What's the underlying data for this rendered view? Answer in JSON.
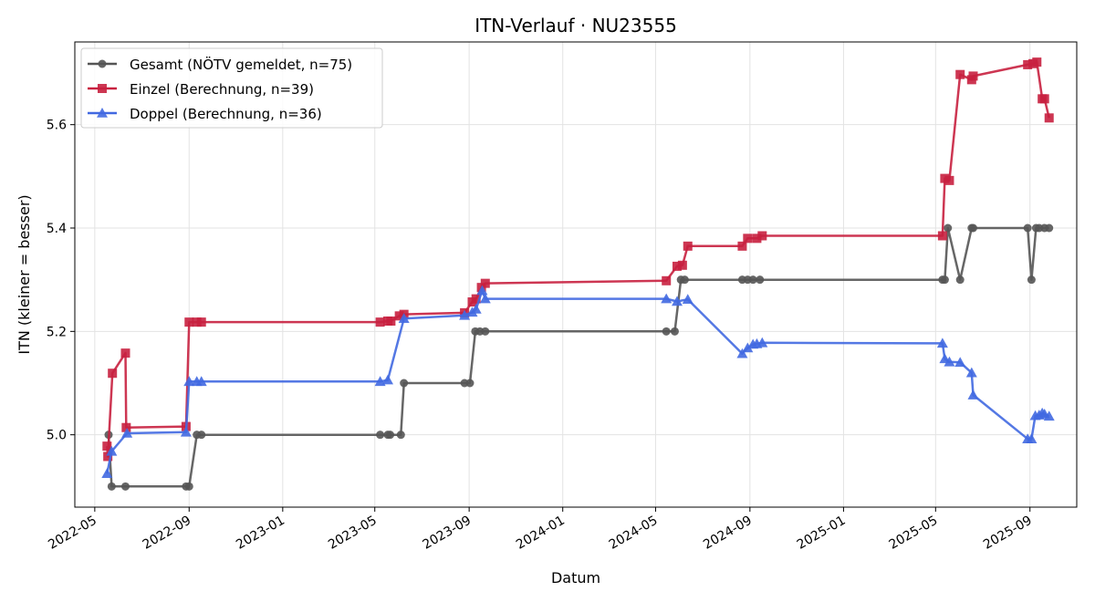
{
  "chart_data": {
    "type": "line",
    "title": "ITN-Verlauf · NU23555",
    "xlabel": "Datum",
    "ylabel": "ITN  (kleiner = besser)",
    "x_ticks": [
      "2022-05",
      "2022-09",
      "2023-01",
      "2023-05",
      "2023-09",
      "2024-01",
      "2024-05",
      "2024-09",
      "2025-01",
      "2025-05",
      "2025-09"
    ],
    "y_ticks": [
      "5.0",
      "5.2",
      "5.4",
      "5.6"
    ],
    "y_tick_values": [
      5.0,
      5.2,
      5.4,
      5.6
    ],
    "xlim": [
      "2022-04-05",
      "2025-11-01"
    ],
    "ylim": [
      4.86,
      5.76
    ],
    "grid": true,
    "legend_position": "upper left",
    "series": [
      {
        "name": "Gesamt (NÖTV gemeldet, n=75)",
        "color": "#555555",
        "marker": "circle",
        "points": [
          [
            "2022-05-19",
            5.0
          ],
          [
            "2022-05-23",
            4.9
          ],
          [
            "2022-06-10",
            4.9
          ],
          [
            "2022-08-28",
            4.9
          ],
          [
            "2022-09-01",
            4.9
          ],
          [
            "2022-09-11",
            5.0
          ],
          [
            "2022-09-17",
            5.0
          ],
          [
            "2023-05-08",
            5.0
          ],
          [
            "2023-05-18",
            5.0
          ],
          [
            "2023-05-21",
            5.0
          ],
          [
            "2023-06-04",
            5.0
          ],
          [
            "2023-06-08",
            5.1
          ],
          [
            "2023-08-26",
            5.1
          ],
          [
            "2023-09-02",
            5.1
          ],
          [
            "2023-09-09",
            5.2
          ],
          [
            "2023-09-15",
            5.2
          ],
          [
            "2023-09-22",
            5.2
          ],
          [
            "2024-05-15",
            5.2
          ],
          [
            "2024-05-26",
            5.2
          ],
          [
            "2024-06-03",
            5.3
          ],
          [
            "2024-06-08",
            5.3
          ],
          [
            "2024-08-22",
            5.3
          ],
          [
            "2024-08-29",
            5.3
          ],
          [
            "2024-09-05",
            5.3
          ],
          [
            "2024-09-14",
            5.3
          ],
          [
            "2025-05-10",
            5.3
          ],
          [
            "2025-05-13",
            5.3
          ],
          [
            "2025-05-17",
            5.4
          ],
          [
            "2025-06-02",
            5.3
          ],
          [
            "2025-06-17",
            5.4
          ],
          [
            "2025-06-19",
            5.4
          ],
          [
            "2025-08-29",
            5.4
          ],
          [
            "2025-09-03",
            5.3
          ],
          [
            "2025-09-09",
            5.4
          ],
          [
            "2025-09-13",
            5.4
          ],
          [
            "2025-09-20",
            5.4
          ],
          [
            "2025-09-26",
            5.4
          ]
        ]
      },
      {
        "name": "Einzel (Berechnung, n=39)",
        "color": "#c8203f",
        "marker": "square",
        "points": [
          [
            "2022-05-17",
            4.978
          ],
          [
            "2022-05-18",
            4.958
          ],
          [
            "2022-05-24",
            5.119
          ],
          [
            "2022-06-10",
            5.158
          ],
          [
            "2022-06-11",
            5.014
          ],
          [
            "2022-08-28",
            5.016
          ],
          [
            "2022-09-01",
            5.218
          ],
          [
            "2022-09-11",
            5.218
          ],
          [
            "2022-09-17",
            5.218
          ],
          [
            "2023-05-08",
            5.218
          ],
          [
            "2023-05-18",
            5.22
          ],
          [
            "2023-05-22",
            5.22
          ],
          [
            "2023-06-02",
            5.23
          ],
          [
            "2023-06-08",
            5.233
          ],
          [
            "2023-08-26",
            5.236
          ],
          [
            "2023-09-05",
            5.257
          ],
          [
            "2023-09-10",
            5.263
          ],
          [
            "2023-09-17",
            5.285
          ],
          [
            "2023-09-22",
            5.293
          ],
          [
            "2024-05-15",
            5.298
          ],
          [
            "2024-05-29",
            5.326
          ],
          [
            "2024-06-05",
            5.328
          ],
          [
            "2024-06-12",
            5.365
          ],
          [
            "2024-08-22",
            5.365
          ],
          [
            "2024-08-29",
            5.38
          ],
          [
            "2024-09-10",
            5.38
          ],
          [
            "2024-09-17",
            5.385
          ],
          [
            "2025-05-10",
            5.385
          ],
          [
            "2025-05-13",
            5.496
          ],
          [
            "2025-05-19",
            5.492
          ],
          [
            "2025-06-02",
            5.697
          ],
          [
            "2025-06-17",
            5.687
          ],
          [
            "2025-06-19",
            5.694
          ],
          [
            "2025-08-29",
            5.716
          ],
          [
            "2025-09-05",
            5.718
          ],
          [
            "2025-09-10",
            5.721
          ],
          [
            "2025-09-17",
            5.65
          ],
          [
            "2025-09-20",
            5.65
          ],
          [
            "2025-09-26",
            5.613
          ]
        ]
      },
      {
        "name": "Doppel (Berechnung, n=36)",
        "color": "#4169e1",
        "marker": "triangle",
        "points": [
          [
            "2022-05-17",
            4.925
          ],
          [
            "2022-05-23",
            4.968
          ],
          [
            "2022-06-12",
            5.003
          ],
          [
            "2022-08-28",
            5.005
          ],
          [
            "2022-09-01",
            5.103
          ],
          [
            "2022-09-11",
            5.103
          ],
          [
            "2022-09-17",
            5.103
          ],
          [
            "2023-05-08",
            5.103
          ],
          [
            "2023-05-18",
            5.106
          ],
          [
            "2023-06-08",
            5.225
          ],
          [
            "2023-08-26",
            5.231
          ],
          [
            "2023-09-05",
            5.237
          ],
          [
            "2023-09-10",
            5.243
          ],
          [
            "2023-09-18",
            5.279
          ],
          [
            "2023-09-22",
            5.263
          ],
          [
            "2024-05-15",
            5.263
          ],
          [
            "2024-05-29",
            5.258
          ],
          [
            "2024-06-12",
            5.262
          ],
          [
            "2024-08-22",
            5.157
          ],
          [
            "2024-08-29",
            5.168
          ],
          [
            "2024-09-05",
            5.175
          ],
          [
            "2024-09-10",
            5.176
          ],
          [
            "2024-09-17",
            5.178
          ],
          [
            "2025-05-10",
            5.177
          ],
          [
            "2025-05-13",
            5.147
          ],
          [
            "2025-05-19",
            5.141
          ],
          [
            "2025-06-02",
            5.14
          ],
          [
            "2025-06-17",
            5.12
          ],
          [
            "2025-06-19",
            5.077
          ],
          [
            "2025-08-29",
            4.992
          ],
          [
            "2025-09-03",
            4.992
          ],
          [
            "2025-09-08",
            5.037
          ],
          [
            "2025-09-13",
            5.038
          ],
          [
            "2025-09-17",
            5.042
          ],
          [
            "2025-09-20",
            5.04
          ],
          [
            "2025-09-26",
            5.036
          ]
        ]
      }
    ]
  }
}
